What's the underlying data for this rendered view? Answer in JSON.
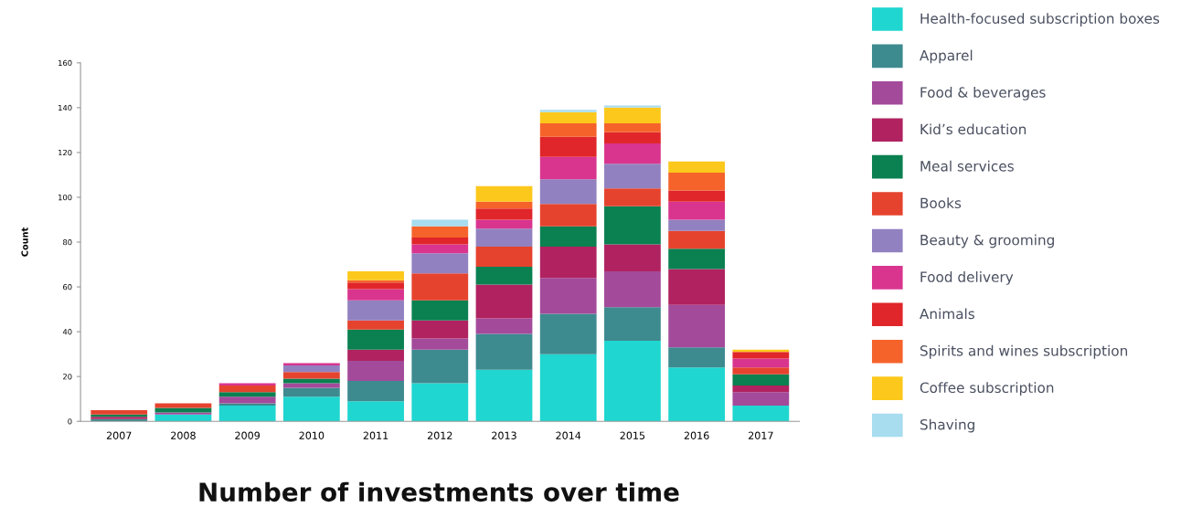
{
  "chart_data": {
    "type": "bar",
    "stacked": true,
    "title": "Number of investments over time",
    "ylabel": "Count",
    "categories": [
      "2007",
      "2008",
      "2009",
      "2010",
      "2011",
      "2012",
      "2013",
      "2014",
      "2015",
      "2016",
      "2017"
    ],
    "ylim": [
      0,
      160
    ],
    "yticks": [
      0,
      20,
      40,
      60,
      80,
      100,
      120,
      140,
      160
    ],
    "grid": false,
    "legend": "right",
    "series": [
      {
        "name": "Health-focused subscription boxes",
        "color": "#1fd6d0",
        "values": [
          0,
          3,
          7,
          11,
          9,
          17,
          23,
          30,
          36,
          24,
          7
        ]
      },
      {
        "name": "Apparel",
        "color": "#3d8a8f",
        "values": [
          1,
          0,
          1,
          4,
          9,
          15,
          16,
          18,
          15,
          9,
          0
        ]
      },
      {
        "name": "Food & beverages",
        "color": "#a34a9b",
        "values": [
          0,
          1,
          3,
          2,
          9,
          5,
          7,
          16,
          16,
          19,
          6
        ]
      },
      {
        "name": "Kid’s education",
        "color": "#b02260",
        "values": [
          1,
          0,
          0,
          0,
          5,
          8,
          15,
          14,
          12,
          16,
          3
        ]
      },
      {
        "name": "Meal services",
        "color": "#0b8050",
        "values": [
          1,
          2,
          2,
          2,
          9,
          9,
          8,
          9,
          17,
          9,
          5
        ]
      },
      {
        "name": "Books",
        "color": "#e5432e",
        "values": [
          2,
          2,
          3,
          3,
          4,
          12,
          9,
          10,
          8,
          8,
          3
        ]
      },
      {
        "name": "Beauty & grooming",
        "color": "#9281c0",
        "values": [
          0,
          0,
          0,
          3,
          9,
          9,
          8,
          11,
          11,
          5,
          0
        ]
      },
      {
        "name": "Food delivery",
        "color": "#d9358f",
        "values": [
          0,
          0,
          1,
          1,
          5,
          4,
          4,
          10,
          9,
          8,
          4
        ]
      },
      {
        "name": "Animals",
        "color": "#e0262a",
        "values": [
          0,
          0,
          0,
          0,
          3,
          3,
          5,
          9,
          5,
          5,
          3
        ]
      },
      {
        "name": "Spirits and wines subscription",
        "color": "#f5632a",
        "values": [
          0,
          0,
          0,
          0,
          1,
          5,
          3,
          6,
          4,
          8,
          0
        ]
      },
      {
        "name": "Coffee subscription",
        "color": "#fcc81c",
        "values": [
          0,
          0,
          0,
          0,
          4,
          0,
          7,
          5,
          7,
          5,
          1
        ]
      },
      {
        "name": "Shaving",
        "color": "#a8dcef",
        "values": [
          0,
          0,
          0,
          0,
          0,
          3,
          0,
          1,
          1,
          0,
          0
        ]
      }
    ]
  }
}
